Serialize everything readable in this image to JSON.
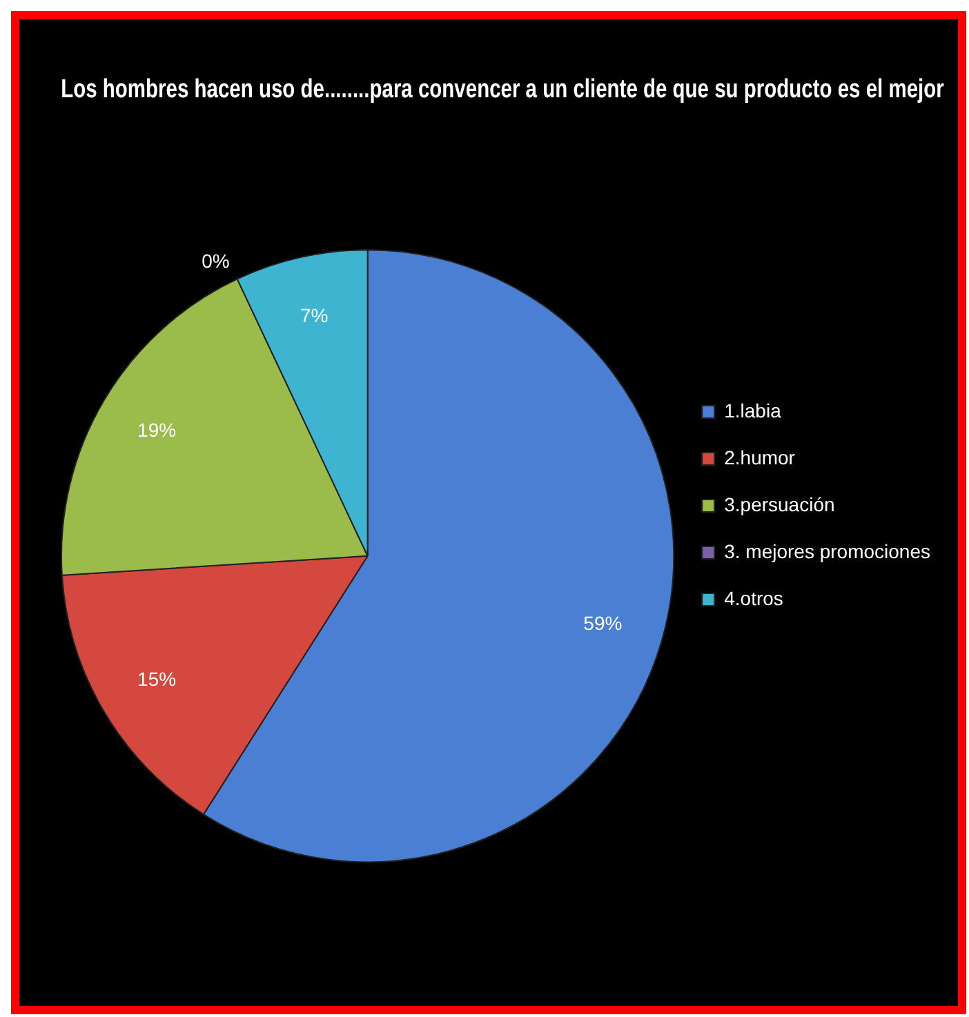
{
  "chart_data": {
    "type": "pie",
    "title": "Los hombres hacen uso de........para convencer a un cliente de que su producto es el mejor",
    "categories": [
      "1.labia",
      "2.humor",
      "3.persuación",
      "3. mejores promociones",
      "4.otros"
    ],
    "values": [
      59,
      15,
      19,
      0,
      7
    ],
    "colors": [
      "#4a7fd4",
      "#d4483f",
      "#9bbb4a",
      "#7d5ea8",
      "#3fb4d0"
    ],
    "value_labels": [
      "59%",
      "15%",
      "19%",
      "0%",
      "7%"
    ],
    "legend": "right"
  }
}
